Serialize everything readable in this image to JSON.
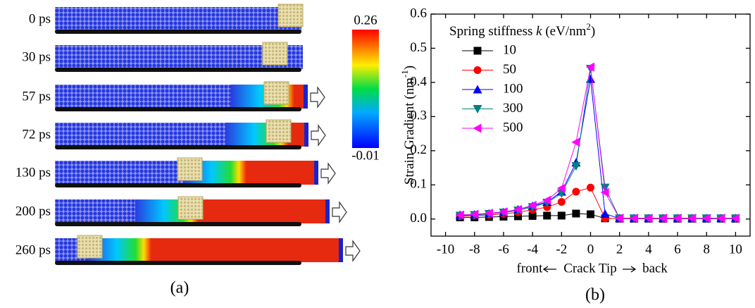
{
  "panel_a": {
    "labels": [
      "0 ps",
      "30 ps",
      "57 ps",
      "72 ps",
      "130 ps",
      "200 ps",
      "260 ps"
    ],
    "colorbar": {
      "max": 0.26,
      "min": -0.01
    },
    "caption": "(a)"
  },
  "chart_data": {
    "type": "line",
    "ylabel": [
      "Strain Gradient (nm",
      "-1",
      ")"
    ],
    "xlabel": [
      "front",
      "Crack Tip",
      "back"
    ],
    "legend_title": [
      "Spring stiffness ",
      "k",
      " (eV/nm",
      "2",
      ")"
    ],
    "legend": "upper left",
    "caption": "(b)",
    "x": [
      -9,
      -8,
      -7,
      -6,
      -5,
      -4,
      -3,
      -2,
      -1,
      0,
      1,
      2,
      3,
      4,
      5,
      6,
      7,
      8,
      9,
      10
    ],
    "series": [
      {
        "name": "10",
        "color": "#000000",
        "marker": "square",
        "values": [
          0.005,
          0.005,
          0.006,
          0.007,
          0.008,
          0.009,
          0.01,
          0.01,
          0.016,
          0.014,
          0.002,
          0.001,
          0.001,
          0.001,
          0.001,
          0.001,
          0.001,
          0.001,
          0.001,
          0.001
        ]
      },
      {
        "name": "50",
        "color": "#ff0000",
        "marker": "circle",
        "values": [
          0.008,
          0.01,
          0.012,
          0.015,
          0.02,
          0.027,
          0.035,
          0.05,
          0.08,
          0.092,
          0.002,
          0.001,
          0.001,
          0.001,
          0.001,
          0.001,
          0.001,
          0.002,
          0.002,
          0.002
        ]
      },
      {
        "name": "100",
        "color": "#0000ff",
        "marker": "triangle-up",
        "values": [
          0.012,
          0.013,
          0.016,
          0.02,
          0.028,
          0.038,
          0.05,
          0.08,
          0.165,
          0.41,
          0.015,
          0.002,
          0.002,
          0.002,
          0.002,
          0.002,
          0.002,
          0.002,
          0.002,
          0.002
        ]
      },
      {
        "name": "300",
        "color": "#008080",
        "marker": "triangle-down",
        "values": [
          0.01,
          0.012,
          0.015,
          0.019,
          0.025,
          0.035,
          0.048,
          0.075,
          0.155,
          0.44,
          0.092,
          0.002,
          0.002,
          0.002,
          0.002,
          0.002,
          0.002,
          0.002,
          0.002,
          0.002
        ]
      },
      {
        "name": "500",
        "color": "#ff00ff",
        "marker": "triangle-left",
        "values": [
          0.012,
          0.014,
          0.017,
          0.021,
          0.028,
          0.04,
          0.055,
          0.09,
          0.225,
          0.445,
          0.078,
          0.002,
          0.002,
          0.002,
          0.002,
          0.002,
          0.002,
          0.002,
          0.002,
          0.002
        ]
      }
    ],
    "xlim": [
      -11,
      11
    ],
    "xticks": [
      -10,
      -8,
      -6,
      -4,
      -2,
      0,
      2,
      4,
      6,
      8,
      10
    ],
    "ylim": [
      -0.05,
      0.6
    ],
    "yticks": [
      {
        "value": 0,
        "label": "0.0"
      },
      0.1,
      0.2,
      0.3,
      0.4,
      0.5,
      0.6
    ],
    "grid": false
  }
}
